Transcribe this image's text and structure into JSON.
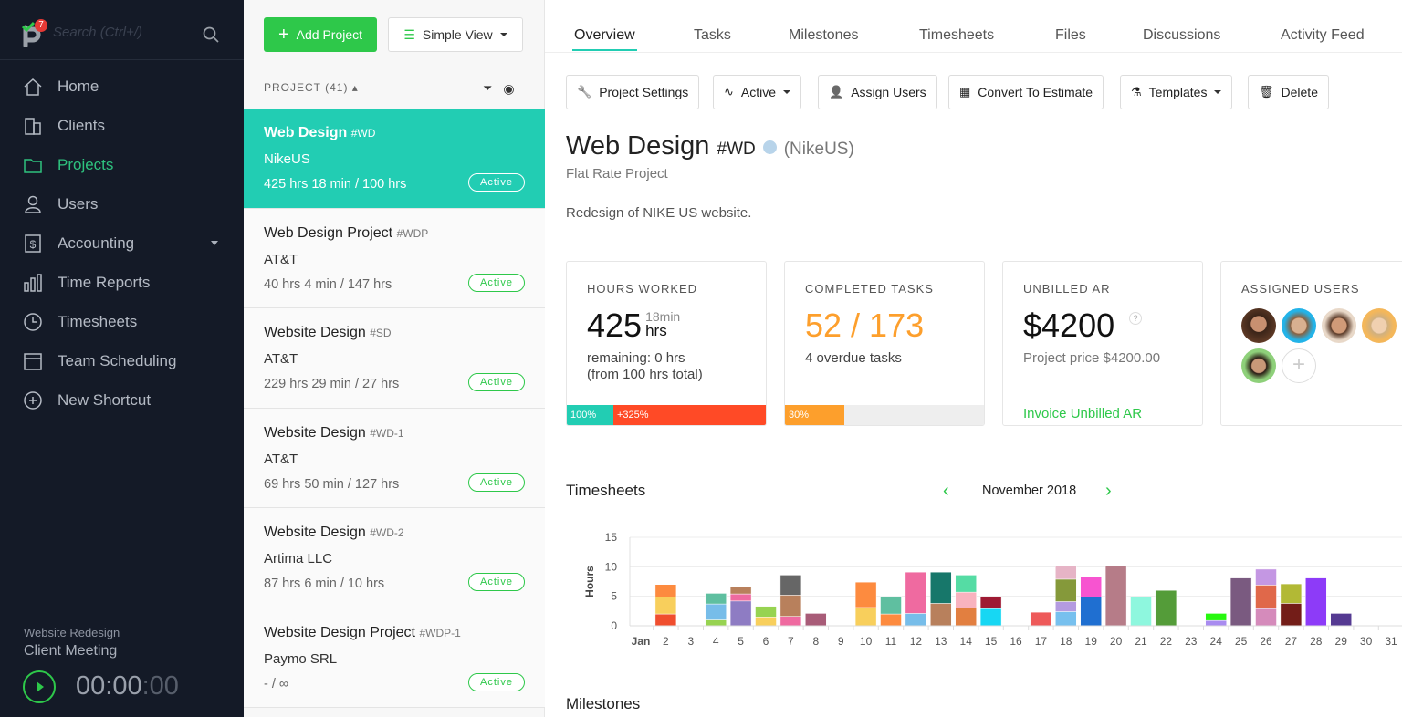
{
  "sidebar": {
    "notifications": "7",
    "search_placeholder": "Search (Ctrl+/)",
    "items": [
      {
        "label": "Home",
        "icon": "home-icon"
      },
      {
        "label": "Clients",
        "icon": "building-icon"
      },
      {
        "label": "Projects",
        "icon": "folder-icon",
        "active": true
      },
      {
        "label": "Users",
        "icon": "user-icon"
      },
      {
        "label": "Accounting",
        "icon": "dollar-icon"
      },
      {
        "label": "Time Reports",
        "icon": "bar-chart-icon"
      },
      {
        "label": "Timesheets",
        "icon": "clock-icon"
      },
      {
        "label": "Team Scheduling",
        "icon": "calendar-icon"
      },
      {
        "label": "New Shortcut",
        "icon": "plus-circle-icon"
      }
    ],
    "timer": {
      "project": "Website Redesign",
      "task": "Client Meeting",
      "time": "00:00",
      "seconds": ":00"
    }
  },
  "projects": {
    "add_label": "Add Project",
    "view_label": "Simple View",
    "header": "PROJECT (41) ▴",
    "items": [
      {
        "name": "Web Design",
        "code": "#WD",
        "client": "NikeUS",
        "hours": "425 hrs 18 min / 100 hrs",
        "status": "Active"
      },
      {
        "name": "Web Design Project",
        "code": "#WDP",
        "client": "AT&T",
        "hours": "40 hrs 4 min / 147 hrs",
        "status": "Active"
      },
      {
        "name": "Website Design",
        "code": "#SD",
        "client": "AT&T",
        "hours": "229 hrs 29 min / 27 hrs",
        "status": "Active"
      },
      {
        "name": "Website Design",
        "code": "#WD-1",
        "client": "AT&T",
        "hours": "69 hrs 50 min / 127 hrs",
        "status": "Active"
      },
      {
        "name": "Website Design",
        "code": "#WD-2",
        "client": "Artima LLC",
        "hours": "87 hrs 6 min / 10 hrs",
        "status": "Active"
      },
      {
        "name": "Website Design Project",
        "code": "#WDP-1",
        "client": "Paymo SRL",
        "hours": "- / ∞",
        "status": "Active"
      }
    ]
  },
  "tabs": [
    "Overview",
    "Tasks",
    "Milestones",
    "Timesheets",
    "Files",
    "Discussions",
    "Activity Feed"
  ],
  "toolbar": [
    "Project Settings",
    "Active",
    "Assign Users",
    "Convert To Estimate",
    "Templates",
    "Delete"
  ],
  "project": {
    "name": "Web Design",
    "code": "#WD",
    "client": "(NikeUS)",
    "type": "Flat Rate Project",
    "description": "Redesign of NIKE US website."
  },
  "cards": {
    "hours": {
      "label": "HOURS WORKED",
      "value": "425",
      "min": "18min",
      "unit": "hrs",
      "remaining": "remaining: 0 hrs",
      "total": "(from 100 hrs total)",
      "bar1": "100%",
      "bar2": "+325%"
    },
    "tasks": {
      "label": "COMPLETED TASKS",
      "value": "52 / 173",
      "overdue": "4 overdue tasks",
      "bar": "30%",
      "progress": 30
    },
    "ar": {
      "label": "UNBILLED AR",
      "value": "$4200",
      "price": "Project price $4200.00",
      "link": "Invoice Unbilled AR"
    },
    "users": {
      "label": "ASSIGNED USERS",
      "count": 5
    }
  },
  "timesheets": {
    "title": "Timesheets",
    "month": "November 2018"
  },
  "milestones": {
    "title": "Milestones"
  },
  "chart_data": {
    "type": "bar",
    "stacked": true,
    "ylabel": "Hours",
    "ylim": [
      0,
      15
    ],
    "yticks": [
      0,
      5,
      10,
      15
    ],
    "grid": true,
    "categories": [
      "Jan",
      "2",
      "3",
      "4",
      "5",
      "6",
      "7",
      "8",
      "9",
      "10",
      "11",
      "12",
      "13",
      "14",
      "15",
      "16",
      "17",
      "18",
      "19",
      "20",
      "21",
      "22",
      "23",
      "24",
      "25",
      "26",
      "27",
      "28",
      "29",
      "30",
      "31"
    ],
    "stacks": [
      [],
      [
        [
          2,
          "#f04e2e"
        ],
        [
          2.9,
          "#f8cf5c"
        ],
        [
          2.1,
          "#fd8b3f"
        ]
      ],
      [],
      [
        [
          1,
          "#97d351"
        ],
        [
          2.7,
          "#77bde9"
        ],
        [
          1.8,
          "#5fbfa0"
        ]
      ],
      [
        [
          4.2,
          "#8e7cc3"
        ],
        [
          1.2,
          "#ef6aa0"
        ],
        [
          1.2,
          "#b8805c"
        ]
      ],
      [
        [
          1.5,
          "#f8cf5c"
        ],
        [
          1.8,
          "#97d351"
        ]
      ],
      [
        [
          1.6,
          "#ef6aa0"
        ],
        [
          3.6,
          "#b8805c"
        ],
        [
          3.4,
          "#666666"
        ]
      ],
      [
        [
          2.1,
          "#a85c78"
        ]
      ],
      [],
      [
        [
          3.1,
          "#f8cf5c"
        ],
        [
          4.3,
          "#fd8b3f"
        ]
      ],
      [
        [
          2,
          "#fd8b3f"
        ],
        [
          3,
          "#5fbfa0"
        ]
      ],
      [
        [
          2.1,
          "#77bde9"
        ],
        [
          7,
          "#ef6aa0"
        ]
      ],
      [
        [
          3.8,
          "#b8805c"
        ],
        [
          5.3,
          "#17776a"
        ]
      ],
      [
        [
          3,
          "#e27f40"
        ],
        [
          2.7,
          "#f8b3bf"
        ],
        [
          2.9,
          "#55dca4"
        ]
      ],
      [
        [
          2.9,
          "#17d7f3"
        ],
        [
          2.1,
          "#9e1a33"
        ]
      ],
      [],
      [
        [
          2.3,
          "#ee5a5a"
        ]
      ],
      [
        [
          2.4,
          "#77c0ee"
        ],
        [
          1.7,
          "#b49be0"
        ],
        [
          3.8,
          "#85993a"
        ],
        [
          2.3,
          "#e6b4c6"
        ]
      ],
      [
        [
          4.9,
          "#1f6fd1"
        ],
        [
          3.4,
          "#f754d0"
        ]
      ],
      [
        [
          10.2,
          "#b67c88"
        ]
      ],
      [
        [
          4.9,
          "#8ef7de"
        ]
      ],
      [
        [
          6,
          "#549c39"
        ]
      ],
      [],
      [
        [
          0.9,
          "#a98cf0"
        ],
        [
          1.2,
          "#27f80f"
        ]
      ],
      [
        [
          8.1,
          "#7a5a80"
        ]
      ],
      [
        [
          2.9,
          "#d58bbb"
        ],
        [
          4,
          "#e0684a"
        ],
        [
          2.7,
          "#c497e3"
        ]
      ],
      [
        [
          3.8,
          "#731d18"
        ],
        [
          3.3,
          "#b2b935"
        ]
      ],
      [
        [
          8.1,
          "#8d3bf8"
        ]
      ],
      [
        [
          2.1,
          "#553a92"
        ]
      ],
      [],
      []
    ]
  },
  "colors": {
    "accent": "#22cdb3",
    "green": "#2ec84a",
    "orange": "#fd9f2c",
    "red": "#ff4a26",
    "sidebar": "#141a27"
  }
}
